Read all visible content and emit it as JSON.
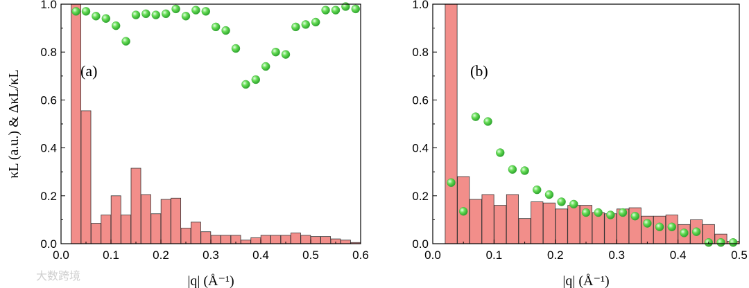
{
  "watermark": "大数跨境",
  "colors": {
    "bar_fill": "#f28e8a",
    "bar_stroke": "#333333",
    "dot": "#5cd65c",
    "dot_light": "#c9f5c9"
  },
  "chart_data": [
    {
      "type": "bar",
      "panel_label": "(a)",
      "xlabel": "|q| (Å⁻¹)",
      "ylabel": "κL (a.u.) & ΔκL/κL",
      "xlim": [
        0,
        0.6
      ],
      "ylim": [
        0,
        1.0
      ],
      "xticks": [
        "0.0",
        "0.1",
        "0.2",
        "0.3",
        "0.4",
        "0.5",
        "0.6"
      ],
      "yticks": [
        "0.0",
        "0.2",
        "0.4",
        "0.6",
        "0.8",
        "1.0"
      ],
      "bar_width": 0.0195,
      "bars_x": [
        0.03,
        0.05,
        0.07,
        0.09,
        0.11,
        0.13,
        0.15,
        0.17,
        0.19,
        0.21,
        0.23,
        0.25,
        0.27,
        0.29,
        0.31,
        0.33,
        0.35,
        0.37,
        0.39,
        0.41,
        0.43,
        0.45,
        0.47,
        0.49,
        0.51,
        0.53,
        0.55,
        0.57,
        0.59
      ],
      "bars_y": [
        1.0,
        0.555,
        0.085,
        0.12,
        0.2,
        0.12,
        0.315,
        0.205,
        0.125,
        0.185,
        0.19,
        0.065,
        0.09,
        0.05,
        0.035,
        0.035,
        0.035,
        0.015,
        0.025,
        0.035,
        0.035,
        0.035,
        0.045,
        0.035,
        0.03,
        0.03,
        0.02,
        0.015,
        0.005
      ],
      "dots_x": [
        0.03,
        0.05,
        0.07,
        0.09,
        0.11,
        0.13,
        0.15,
        0.17,
        0.19,
        0.21,
        0.23,
        0.25,
        0.27,
        0.29,
        0.31,
        0.33,
        0.35,
        0.37,
        0.39,
        0.41,
        0.43,
        0.45,
        0.47,
        0.49,
        0.51,
        0.53,
        0.55,
        0.57,
        0.59
      ],
      "dots_y": [
        0.97,
        0.97,
        0.95,
        0.94,
        0.91,
        0.845,
        0.955,
        0.96,
        0.955,
        0.96,
        0.98,
        0.95,
        0.975,
        0.97,
        0.905,
        0.89,
        0.815,
        0.665,
        0.685,
        0.74,
        0.8,
        0.79,
        0.905,
        0.915,
        0.925,
        0.975,
        0.975,
        0.99,
        0.98
      ]
    },
    {
      "type": "bar",
      "panel_label": "(b)",
      "xlabel": "|q| (Å⁻¹)",
      "ylabel": "",
      "xlim": [
        0,
        0.5
      ],
      "ylim": [
        0,
        1.0
      ],
      "xticks": [
        "0.0",
        "0.1",
        "0.2",
        "0.3",
        "0.4",
        "0.5"
      ],
      "yticks": [
        "0.0",
        "0.2",
        "0.4",
        "0.6",
        "0.8",
        "1.0"
      ],
      "bar_width": 0.0195,
      "bars_x": [
        0.03,
        0.05,
        0.07,
        0.09,
        0.11,
        0.13,
        0.15,
        0.17,
        0.19,
        0.21,
        0.23,
        0.25,
        0.27,
        0.29,
        0.31,
        0.33,
        0.35,
        0.37,
        0.39,
        0.41,
        0.43,
        0.45,
        0.47,
        0.49
      ],
      "bars_y": [
        1.0,
        0.28,
        0.185,
        0.205,
        0.16,
        0.205,
        0.105,
        0.175,
        0.17,
        0.145,
        0.16,
        0.16,
        0.13,
        0.125,
        0.145,
        0.15,
        0.115,
        0.115,
        0.12,
        0.08,
        0.1,
        0.08,
        0.04,
        0.01
      ],
      "dots_x": [
        0.03,
        0.05,
        0.07,
        0.09,
        0.11,
        0.13,
        0.15,
        0.17,
        0.19,
        0.21,
        0.23,
        0.25,
        0.27,
        0.29,
        0.31,
        0.33,
        0.35,
        0.37,
        0.39,
        0.41,
        0.43,
        0.45,
        0.47,
        0.49
      ],
      "dots_y": [
        0.255,
        0.135,
        0.53,
        0.51,
        0.38,
        0.31,
        0.305,
        0.225,
        0.205,
        0.175,
        0.165,
        0.13,
        0.13,
        0.12,
        0.13,
        0.115,
        0.085,
        0.07,
        0.07,
        0.045,
        0.05,
        0.005,
        0.005,
        0.005
      ]
    }
  ]
}
